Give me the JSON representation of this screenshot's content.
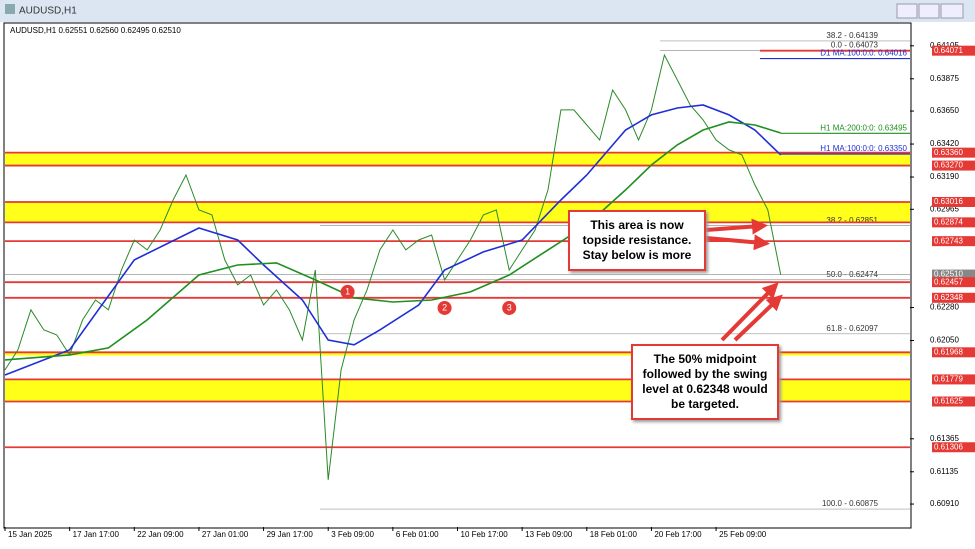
{
  "window": {
    "title": "AUDUSD,H1"
  },
  "chart_data": {
    "type": "line",
    "header": "AUDUSD,H1  0.62551 0.62560 0.62495 0.62510",
    "xlim": [
      0,
      140
    ],
    "xticks": [
      {
        "value": 0,
        "label": "15 Jan 2025"
      },
      {
        "value": 10,
        "label": "17 Jan 17:00"
      },
      {
        "value": 20,
        "label": "22 Jan 09:00"
      },
      {
        "value": 30,
        "label": "27 Jan 01:00"
      },
      {
        "value": 40,
        "label": "29 Jan 17:00"
      },
      {
        "value": 50,
        "label": "3 Feb 09:00"
      },
      {
        "value": 60,
        "label": "6 Feb 01:00"
      },
      {
        "value": 70,
        "label": "10 Feb 17:00"
      },
      {
        "value": 80,
        "label": "13 Feb 09:00"
      },
      {
        "value": 90,
        "label": "18 Feb 01:00"
      },
      {
        "value": 100,
        "label": "20 Feb 17:00"
      },
      {
        "value": 110,
        "label": "25 Feb 09:00"
      }
    ],
    "ylim": [
      0.6075,
      0.6425
    ],
    "yticks": [
      {
        "value": 0.64105,
        "label": "0.64105"
      },
      {
        "value": 0.63875,
        "label": "0.63875"
      },
      {
        "value": 0.6365,
        "label": "0.63650"
      },
      {
        "value": 0.6342,
        "label": "0.63420"
      },
      {
        "value": 0.6319,
        "label": "0.63190"
      },
      {
        "value": 0.62965,
        "label": "0.62965"
      },
      {
        "value": 0.6228,
        "label": "0.62280"
      },
      {
        "value": 0.6205,
        "label": "0.62050"
      },
      {
        "value": 0.61365,
        "label": "0.61365"
      },
      {
        "value": 0.61135,
        "label": "0.61135"
      },
      {
        "value": 0.6091,
        "label": "0.60910"
      }
    ],
    "series": [
      {
        "color": "#2a8a2a",
        "x": [
          0,
          2,
          4,
          6,
          8,
          10,
          12,
          14,
          16,
          18,
          20,
          22,
          24,
          26,
          28,
          30,
          32,
          34,
          36,
          38,
          40,
          42,
          44,
          46,
          48,
          50,
          52,
          54,
          56,
          58,
          60,
          62,
          64,
          66,
          68,
          70,
          72,
          74,
          76,
          78,
          80,
          82,
          84,
          86,
          88,
          90,
          92,
          94,
          96,
          98,
          100,
          102,
          104,
          106,
          108,
          110,
          112,
          114,
          116,
          118,
          120
        ],
        "values": [
          0.61845,
          0.61985,
          0.62264,
          0.62124,
          0.62089,
          0.6195,
          0.62194,
          0.62333,
          0.62264,
          0.62542,
          0.62751,
          0.62682,
          0.62821,
          0.6303,
          0.63204,
          0.62961,
          0.62926,
          0.62612,
          0.62438,
          0.62507,
          0.62298,
          0.62403,
          0.62264,
          0.62054,
          0.62542,
          0.61079,
          0.61845,
          0.62194,
          0.62403,
          0.62682,
          0.62821,
          0.62682,
          0.62751,
          0.62786,
          0.62473,
          0.62612,
          0.62751,
          0.62926,
          0.62961,
          0.62542,
          0.62682,
          0.62821,
          0.631,
          0.63658,
          0.63658,
          0.63553,
          0.63448,
          0.63797,
          0.63658,
          0.63448,
          0.63658,
          0.64041,
          0.63867,
          0.63692,
          0.63588,
          0.63448,
          0.63379,
          0.63344,
          0.63135,
          0.62961,
          0.6251
        ]
      },
      {
        "color": "#1e2fd6",
        "x": [
          0,
          10,
          20,
          30,
          36,
          40,
          46,
          50,
          54,
          58,
          64,
          68,
          74,
          80,
          86,
          90,
          96,
          100,
          104,
          108,
          112,
          116,
          120
        ],
        "values": [
          0.6181,
          0.61985,
          0.62612,
          0.62835,
          0.62751,
          0.62577,
          0.62333,
          0.62054,
          0.6202,
          0.62124,
          0.62298,
          0.62542,
          0.62668,
          0.62751,
          0.6303,
          0.63204,
          0.63518,
          0.63623,
          0.63671,
          0.63692,
          0.63623,
          0.63518,
          0.63344
        ]
      },
      {
        "color": "#1f8f1f",
        "x": [
          0,
          10,
          16,
          22,
          30,
          36,
          42,
          48,
          54,
          60,
          66,
          72,
          78,
          84,
          90,
          96,
          100,
          104,
          108,
          112,
          116,
          120
        ],
        "values": [
          0.61915,
          0.6195,
          0.61999,
          0.62194,
          0.62507,
          0.62577,
          0.62591,
          0.62473,
          0.62347,
          0.62319,
          0.62333,
          0.62389,
          0.62507,
          0.62682,
          0.62856,
          0.631,
          0.63274,
          0.63414,
          0.63518,
          0.63574,
          0.63553,
          0.63497
        ]
      }
    ],
    "zones": [
      {
        "from": 0.6327,
        "to": 0.6336
      },
      {
        "from": 0.62874,
        "to": 0.63016
      },
      {
        "from": 0.61945,
        "to": 0.61968
      },
      {
        "from": 0.61625,
        "to": 0.61779
      }
    ],
    "levels": [
      {
        "value": 0.64071,
        "label": "0.64071",
        "color": "#e53935"
      },
      {
        "value": 0.6336,
        "label": "0.63360",
        "color": "#e53935"
      },
      {
        "value": 0.6327,
        "label": "0.63270",
        "color": "#e53935"
      },
      {
        "value": 0.63016,
        "label": "0.63016",
        "color": "#e53935"
      },
      {
        "value": 0.62874,
        "label": "0.62874",
        "color": "#e53935"
      },
      {
        "value": 0.62743,
        "label": "0.62743",
        "color": "#e53935"
      },
      {
        "value": 0.6251,
        "label": "0.62510",
        "color": "#888888"
      },
      {
        "value": 0.62457,
        "label": "0.62457",
        "color": "#e53935"
      },
      {
        "value": 0.62348,
        "label": "0.62348",
        "color": "#e53935"
      },
      {
        "value": 0.61968,
        "label": "0.61968",
        "color": "#e53935"
      },
      {
        "value": 0.61779,
        "label": "0.61779",
        "color": "#e53935"
      },
      {
        "value": 0.61625,
        "label": "0.61625",
        "color": "#e53935"
      },
      {
        "value": 0.61306,
        "label": "0.61306",
        "color": "#e53935"
      }
    ],
    "fibs": [
      {
        "value": 0.64139,
        "label": "38.2 - 0.64139"
      },
      {
        "value": 0.64073,
        "label": "0.0 - 0.64073"
      },
      {
        "value": 0.62851,
        "label": "38.2 - 0.62851"
      },
      {
        "value": 0.62474,
        "label": "50.0 - 0.62474"
      },
      {
        "value": 0.62097,
        "label": "61.8 - 0.62097"
      },
      {
        "value": 0.60875,
        "label": "100.0 - 0.60875"
      }
    ],
    "ma_labels": [
      {
        "value": 0.64016,
        "label": "D1 MA:100:0:0: 0.64016",
        "color": "#1e2fd6"
      },
      {
        "value": 0.63495,
        "label": "H1 MA:200:0:0: 0.63495",
        "color": "#1f8f1f"
      },
      {
        "value": 0.6335,
        "label": "H1 MA:100:0:0: 0.63350",
        "color": "#1e2fd6"
      }
    ],
    "markers": [
      {
        "label": "1",
        "x": 53,
        "y": 0.62389
      },
      {
        "label": "2",
        "x": 68,
        "y": 0.62277
      },
      {
        "label": "3",
        "x": 78,
        "y": 0.62277
      }
    ],
    "annotations": [
      "This area is now topside resistance. Stay below is more",
      "The 50% midpoint followed by the swing level at 0.62348 would be targeted."
    ]
  }
}
